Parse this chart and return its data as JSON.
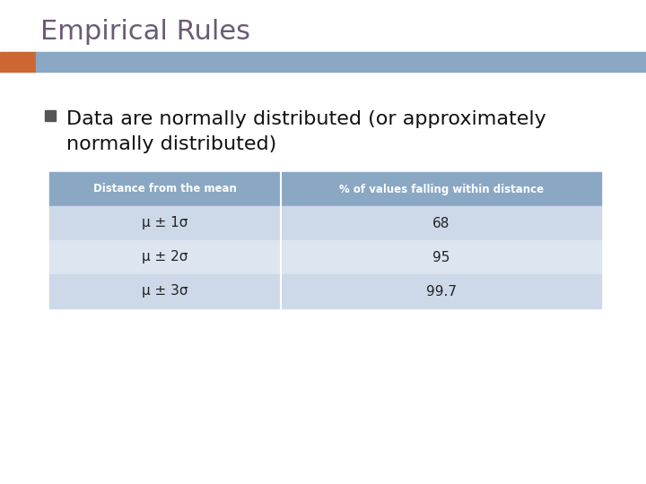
{
  "title": "Empirical Rules",
  "title_color": "#6b5b73",
  "title_fontsize": 22,
  "bullet_text_line1": "Data are normally distributed (or approximately",
  "bullet_text_line2": "normally distributed)",
  "bullet_fontsize": 16,
  "bullet_color": "#111111",
  "bullet_marker_color": "#555555",
  "header_bg_color": "#8aa8c4",
  "header_text_color": "#ffffff",
  "row_bg_color_1": "#cdd9e8",
  "row_bg_color_2": "#dde5f0",
  "table_text_color": "#222222",
  "col1_header": "Distance from the mean",
  "col2_header": "% of values falling within distance",
  "table_rows": [
    [
      "μ ± 1σ",
      "68"
    ],
    [
      "μ ± 2σ",
      "95"
    ],
    [
      "μ ± 3σ",
      "99.7"
    ]
  ],
  "banner_color_blue": "#8aa8c4",
  "banner_color_orange": "#cc6633",
  "bg_color": "#ffffff"
}
